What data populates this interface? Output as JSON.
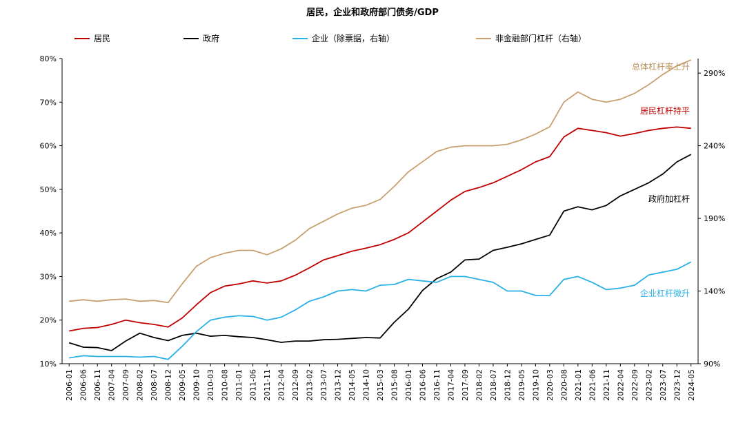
{
  "chart_data": {
    "type": "line",
    "title": "居民，企业和政府部门债务/GDP",
    "legend_position": "top",
    "grid": false,
    "y_left": {
      "range": [
        10,
        80
      ],
      "ticks": [
        "80%",
        "70%",
        "60%",
        "50%",
        "40%",
        "30%",
        "20%",
        "10%"
      ]
    },
    "y_right": {
      "range": [
        90,
        300
      ],
      "ticks": [
        "290%",
        "240%",
        "190%",
        "140%",
        "90%"
      ]
    },
    "x_categories": [
      "2006-01",
      "2006-06",
      "2006-11",
      "2007-04",
      "2007-09",
      "2008-02",
      "2008-07",
      "2008-12",
      "2009-05",
      "2009-10",
      "2010-03",
      "2010-08",
      "2011-01",
      "2011-06",
      "2011-11",
      "2012-04",
      "2012-09",
      "2013-02",
      "2013-07",
      "2013-12",
      "2014-05",
      "2014-10",
      "2015-03",
      "2015-08",
      "2016-01",
      "2016-06",
      "2016-11",
      "2017-04",
      "2017-09",
      "2018-02",
      "2018-07",
      "2018-12",
      "2019-05",
      "2019-10",
      "2020-03",
      "2020-08",
      "2021-01",
      "2021-06",
      "2021-11",
      "2022-04",
      "2022-09",
      "2023-02",
      "2023-07",
      "2023-12",
      "2024-05"
    ],
    "series": [
      {
        "name": "居民",
        "color": "#c00000",
        "axis": "left",
        "values": [
          17.5,
          18.1,
          18.3,
          19.0,
          20.0,
          19.4,
          19.0,
          18.4,
          20.5,
          23.5,
          26.3,
          27.8,
          28.3,
          29.0,
          28.5,
          29.0,
          30.3,
          32.0,
          33.8,
          34.8,
          35.8,
          36.5,
          37.3,
          38.5,
          40.0,
          42.5,
          45.0,
          47.5,
          49.5,
          50.4,
          51.5,
          53.0,
          54.5,
          56.3,
          57.5,
          62.0,
          64.0,
          63.5,
          63.0,
          62.2,
          62.8,
          63.5,
          64.0,
          64.3,
          64.0
        ]
      },
      {
        "name": "政府",
        "color": "#000000",
        "axis": "left",
        "values": [
          14.8,
          13.8,
          13.7,
          13.0,
          15.2,
          17.0,
          16.0,
          15.3,
          16.5,
          17.0,
          16.3,
          16.5,
          16.2,
          16.0,
          15.5,
          14.9,
          15.2,
          15.2,
          15.5,
          15.6,
          15.8,
          16.0,
          15.9,
          19.5,
          22.5,
          26.8,
          29.5,
          31.0,
          33.8,
          34.0,
          36.0,
          36.7,
          37.5,
          38.5,
          39.5,
          45.0,
          46.0,
          45.3,
          46.3,
          48.5,
          50.0,
          51.5,
          53.5,
          56.3,
          58.0
        ]
      },
      {
        "name": "企业（除票据，右轴）",
        "color": "#29b0e6",
        "axis": "right",
        "values": [
          94,
          95.5,
          95,
          95,
          95,
          94.5,
          95,
          93,
          102,
          112,
          120,
          122,
          123,
          122.5,
          120,
          122,
          127,
          133,
          136,
          140,
          141,
          140,
          144,
          144.5,
          148,
          147,
          146,
          150,
          150,
          148,
          146,
          140,
          140,
          137,
          137,
          148,
          150,
          146,
          141,
          142,
          144,
          151,
          153,
          155,
          160
        ]
      },
      {
        "name": "非金融部门杠杆（右轴）",
        "color": "#c8a070",
        "axis": "right",
        "values": [
          133,
          134,
          133,
          134,
          134.5,
          133,
          133.5,
          132,
          145,
          157,
          163,
          166,
          168,
          168,
          165,
          169,
          175,
          183,
          188,
          193,
          197,
          199,
          203,
          212,
          222,
          229,
          236,
          239,
          240,
          240,
          240,
          241,
          244,
          248,
          253,
          270,
          277,
          272,
          270,
          272,
          276,
          282,
          289,
          295,
          299
        ]
      }
    ],
    "legend": [
      "居民",
      "政府",
      "企业（除票据，右轴）",
      "非金融部门杠杆（右轴）"
    ],
    "annotations": [
      {
        "text": "总体杠杆率上升",
        "color": "#b8925a"
      },
      {
        "text": "居民杠杆持平",
        "color": "#c00000"
      },
      {
        "text": "政府加杠杆",
        "color": "#000000"
      },
      {
        "text": "企业杠杆微升",
        "color": "#29b0e6"
      }
    ]
  }
}
